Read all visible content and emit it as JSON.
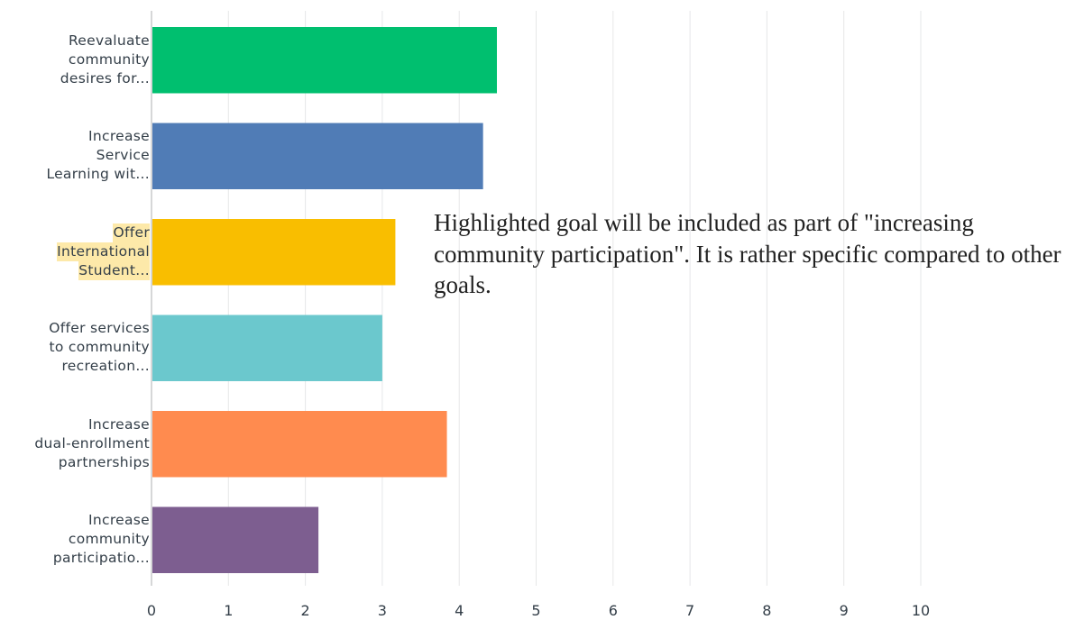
{
  "chart_data": {
    "type": "bar",
    "orientation": "horizontal",
    "categories": [
      "Reevaluate community desires for...",
      "Increase Service Learning wit...",
      "Offer International Student...",
      "Offer services to community recreation...",
      "Increase dual-enrollment partnerships",
      "Increase community participatio..."
    ],
    "category_lines": [
      [
        "Reevaluate",
        "community",
        "desires for..."
      ],
      [
        "Increase",
        "Service",
        "Learning wit..."
      ],
      [
        "Offer",
        "International",
        "Student..."
      ],
      [
        "Offer services",
        "to community",
        "recreation..."
      ],
      [
        "Increase",
        "dual-enrollment",
        "partnerships"
      ],
      [
        "Increase",
        "community",
        "participatio..."
      ]
    ],
    "highlighted": [
      false,
      false,
      true,
      false,
      false,
      false
    ],
    "values": [
      4.49,
      4.31,
      3.17,
      3.0,
      3.84,
      2.17
    ],
    "colors": [
      "#00bf6f",
      "#507cb6",
      "#f9be00",
      "#6bc8cd",
      "#ff8b4f",
      "#7d5e90"
    ],
    "xlim": [
      0,
      10
    ],
    "xticks": [
      0,
      1,
      2,
      3,
      4,
      5,
      6,
      7,
      8,
      9,
      10
    ],
    "grid": true,
    "title": "",
    "xlabel": "",
    "ylabel": "",
    "annotation": "Highlighted goal will be included as part of \"increasing community participation\". It is rather specific compared to other goals."
  }
}
